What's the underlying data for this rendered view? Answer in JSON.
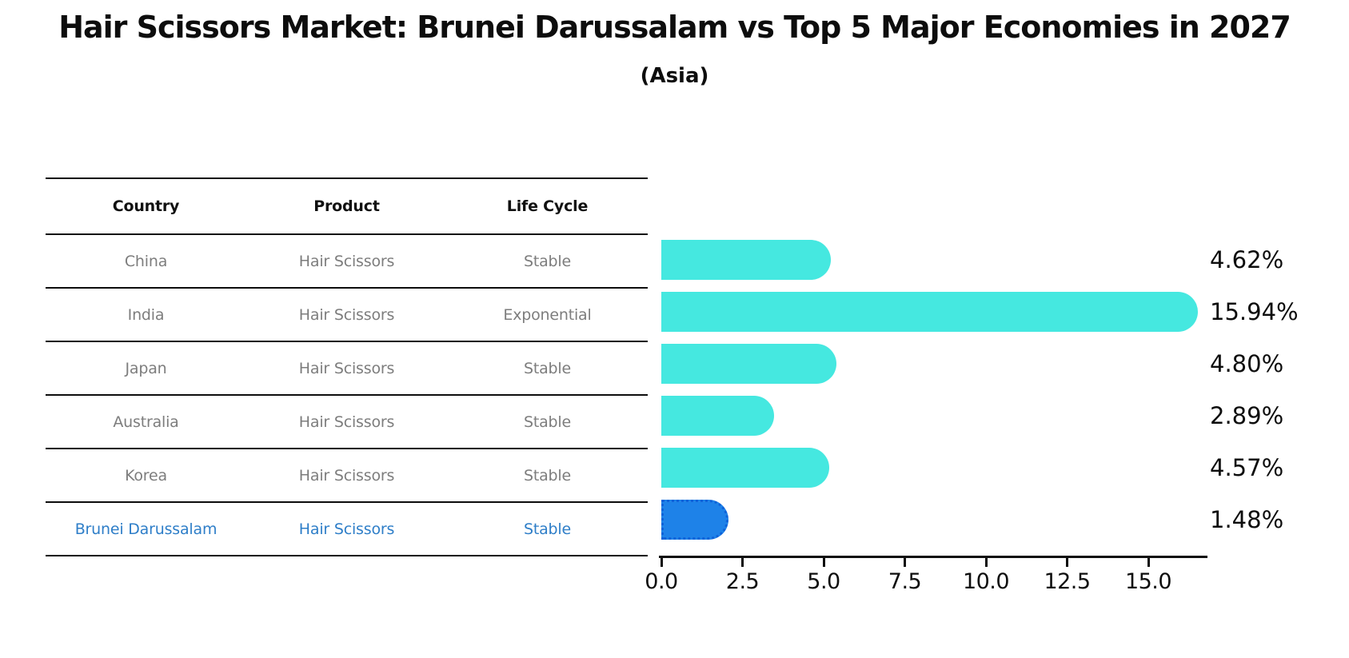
{
  "header": {
    "title": "Hair Scissors Market: Brunei Darussalam vs Top 5 Major Economies in 2027",
    "subtitle": "(Asia)"
  },
  "table": {
    "headers": [
      "Country",
      "Product",
      "Life Cycle"
    ],
    "rows": [
      {
        "country": "China",
        "product": "Hair Scissors",
        "life_cycle": "Stable",
        "highlight": false
      },
      {
        "country": "India",
        "product": "Hair Scissors",
        "life_cycle": "Exponential",
        "highlight": false
      },
      {
        "country": "Japan",
        "product": "Hair Scissors",
        "life_cycle": "Stable",
        "highlight": false
      },
      {
        "country": "Australia",
        "product": "Hair Scissors",
        "life_cycle": "Stable",
        "highlight": false
      },
      {
        "country": "Korea",
        "product": "Hair Scissors",
        "life_cycle": "Stable",
        "highlight": false
      },
      {
        "country": "Brunei Darussalam",
        "product": "Hair Scissors",
        "life_cycle": "Stable",
        "highlight": true
      }
    ]
  },
  "chart_data": {
    "type": "bar",
    "orientation": "horizontal",
    "title": "Hair Scissors Market: Brunei Darussalam vs Top 5 Major Economies in 2027",
    "subtitle": "(Asia)",
    "categories": [
      "China",
      "India",
      "Japan",
      "Australia",
      "Korea",
      "Brunei Darussalam"
    ],
    "values": [
      4.62,
      15.94,
      4.8,
      2.89,
      4.57,
      1.48
    ],
    "value_labels": [
      "4.62%",
      "15.94%",
      "4.80%",
      "2.89%",
      "4.57%",
      "1.48%"
    ],
    "highlight_index": 5,
    "xlim": [
      0,
      16.75
    ],
    "xticks": [
      0.0,
      2.5,
      5.0,
      7.5,
      10.0,
      12.5,
      15.0
    ],
    "xtick_labels": [
      "0.0",
      "2.5",
      "5.0",
      "7.5",
      "10.0",
      "12.5",
      "15.0"
    ],
    "grid": false,
    "legend": false
  },
  "colors": {
    "bar": "#45E8E0",
    "highlight_bar": "#1E82E8",
    "highlight_border": "#0E62D9",
    "highlight_text": "#2E7EC8",
    "row_text": "#7D7D7D",
    "text": "#0D0D0D"
  }
}
